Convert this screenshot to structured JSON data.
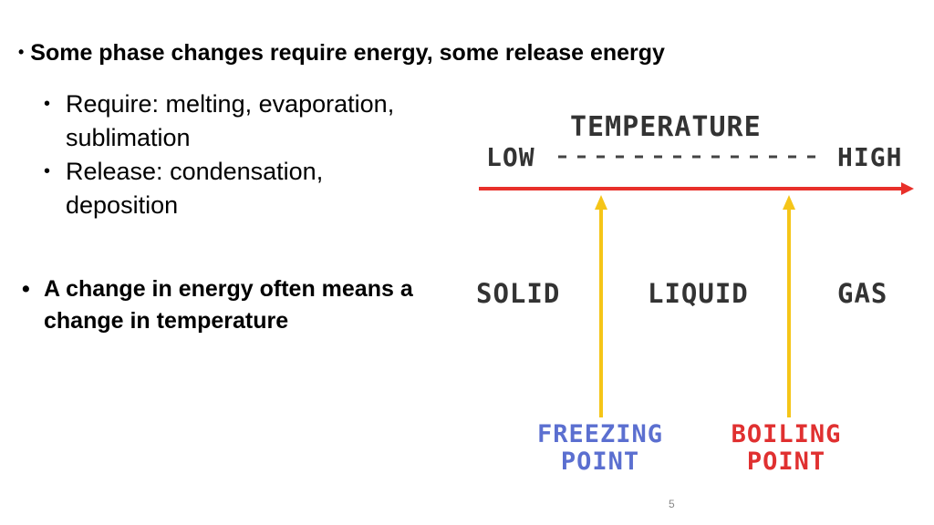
{
  "bullets": [
    {
      "text": "Some phase changes require energy, some release energy",
      "sub": [
        "Require: melting, evaporation, sublimation",
        "Release: condensation, deposition"
      ]
    },
    {
      "text": "A change in energy often means a change in temperature"
    }
  ],
  "diagram": {
    "title": "TEMPERATURE",
    "low": "LOW",
    "high": "HIGH",
    "phases": [
      "SOLID",
      "LIQUID",
      "GAS"
    ],
    "points": [
      {
        "lines": [
          "FREEZING",
          "POINT"
        ]
      },
      {
        "lines": [
          "BOILING",
          "POINT"
        ]
      }
    ]
  },
  "page_number": "5"
}
